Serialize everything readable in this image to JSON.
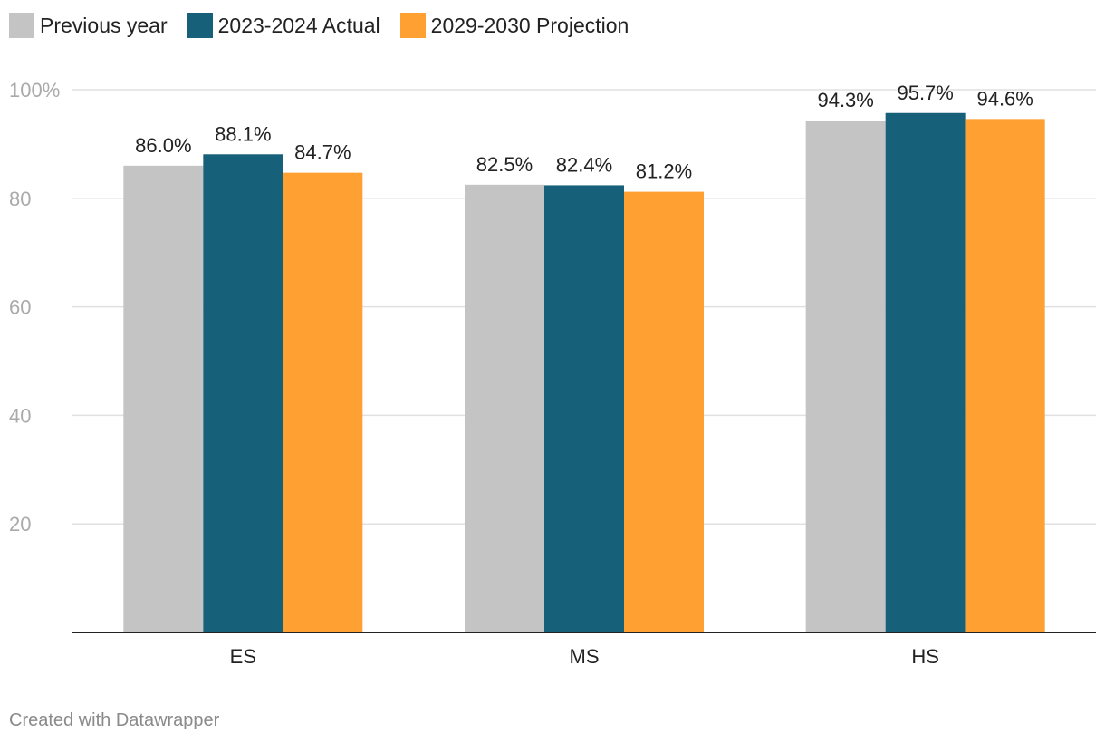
{
  "chart_data": {
    "type": "bar",
    "title": "",
    "xlabel": "",
    "ylabel": "",
    "categories": [
      "ES",
      "MS",
      "HS"
    ],
    "series": [
      {
        "name": "Previous year",
        "color": "#c4c4c4",
        "values": [
          86.0,
          82.5,
          94.3
        ],
        "labels": [
          "86.0%",
          "82.5%",
          "94.3%"
        ]
      },
      {
        "name": "2023-2024 Actual",
        "color": "#17607a",
        "values": [
          88.1,
          82.4,
          95.7
        ],
        "labels": [
          "88.1%",
          "82.4%",
          "95.7%"
        ]
      },
      {
        "name": "2029-2030 Projection",
        "color": "#ffa032",
        "values": [
          84.7,
          81.2,
          94.6
        ],
        "labels": [
          "84.7%",
          "81.2%",
          "94.6%"
        ]
      }
    ],
    "ylim": [
      0,
      100
    ],
    "yticks": [
      20,
      40,
      60,
      80,
      100
    ],
    "ytick_labels": [
      "20",
      "40",
      "60",
      "80",
      "100%"
    ],
    "grid": true,
    "legend": "top-left"
  },
  "credit": "Created with Datawrapper"
}
